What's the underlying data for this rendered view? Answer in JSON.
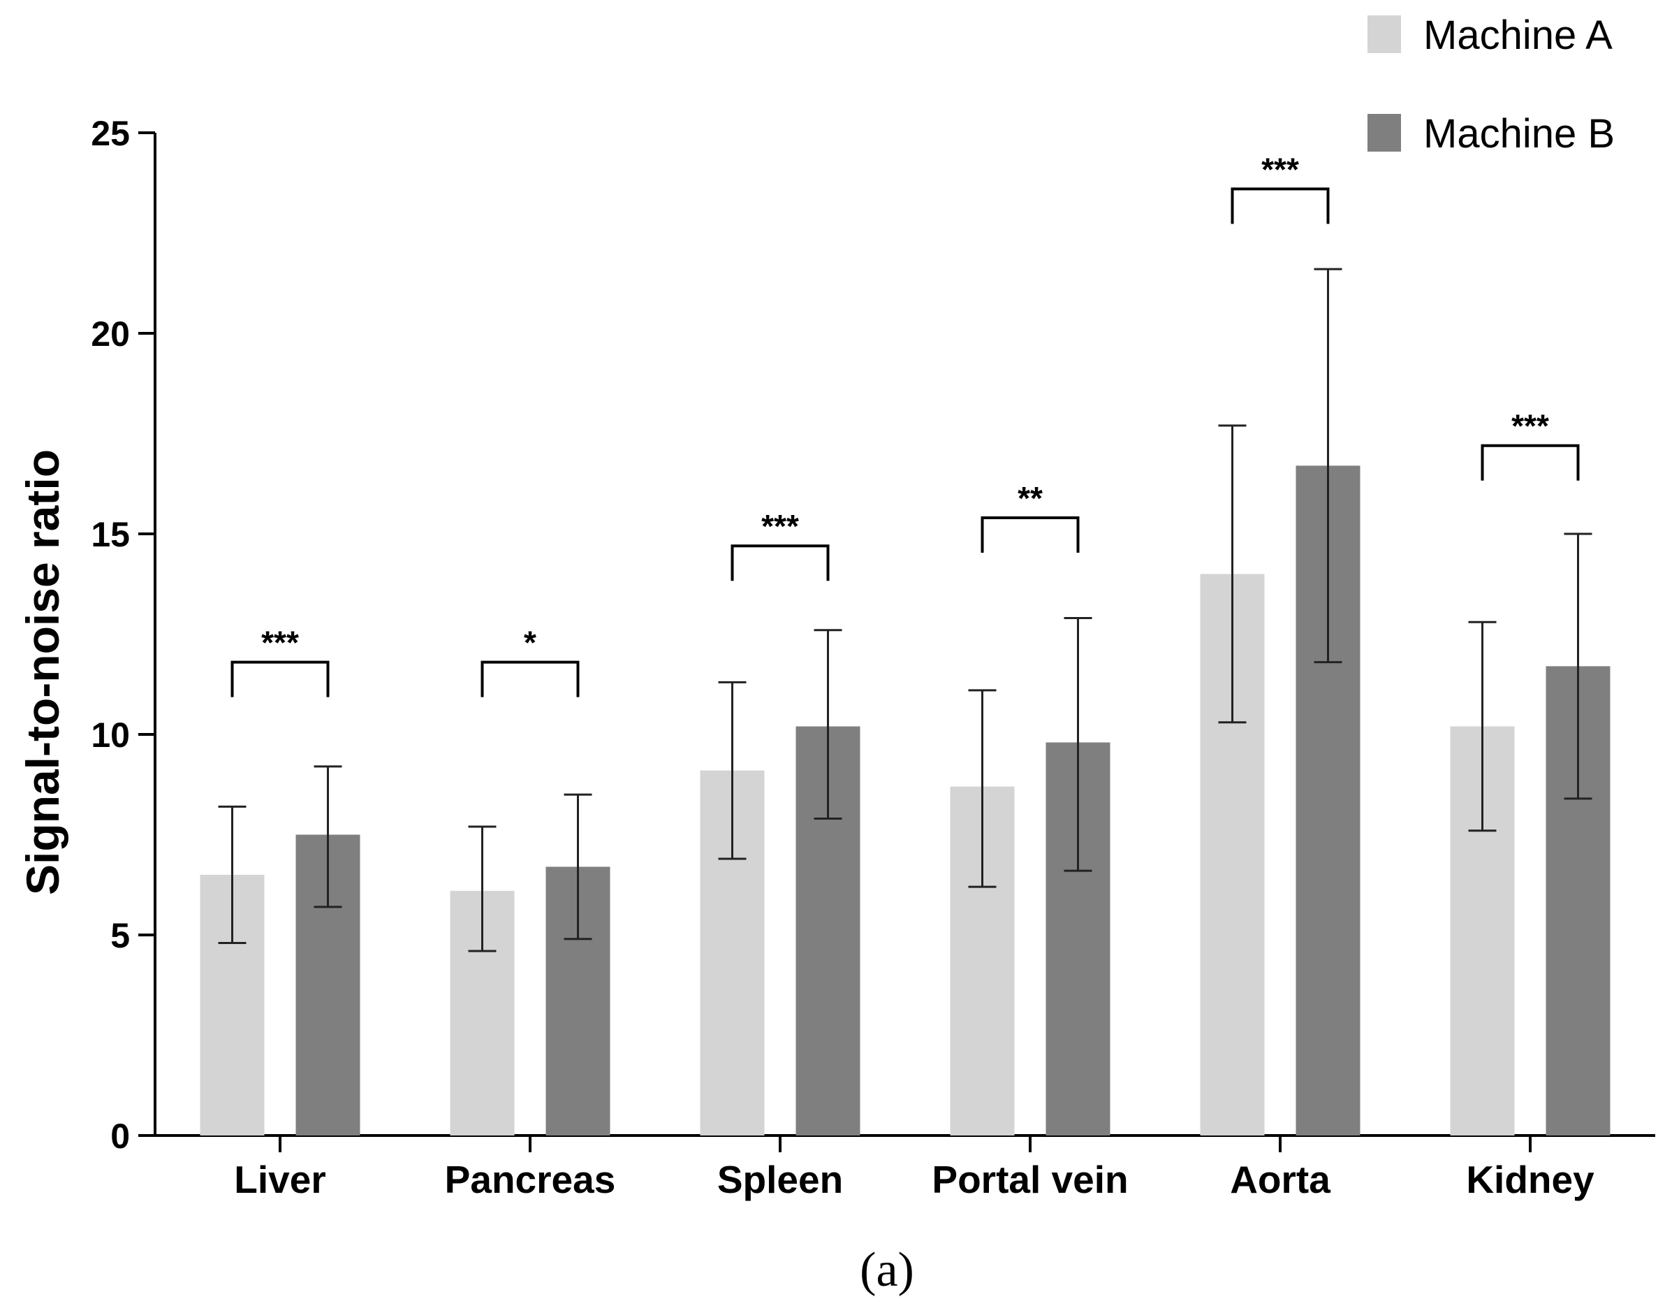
{
  "chart_data": {
    "type": "bar",
    "title": "",
    "xlabel": "",
    "ylabel": "Signal-to-noise ratio",
    "ylim": [
      0,
      25
    ],
    "yticks": [
      0,
      5,
      10,
      15,
      20,
      25
    ],
    "categories": [
      "Liver",
      "Pancreas",
      "Spleen",
      "Portal vein",
      "Aorta",
      "Kidney"
    ],
    "series": [
      {
        "name": "Machine A",
        "color": "#d4d4d4",
        "values": [
          6.5,
          6.1,
          9.1,
          8.7,
          14.0,
          10.2
        ],
        "err_low": [
          4.8,
          4.6,
          6.9,
          6.2,
          10.3,
          7.6
        ],
        "err_high": [
          8.2,
          7.7,
          11.3,
          11.1,
          17.7,
          12.8
        ]
      },
      {
        "name": "Machine B",
        "color": "#7f7f7f",
        "values": [
          7.5,
          6.7,
          10.2,
          9.8,
          16.7,
          11.7
        ],
        "err_low": [
          5.7,
          4.9,
          7.9,
          6.6,
          11.8,
          8.4
        ],
        "err_high": [
          9.2,
          8.5,
          12.6,
          12.9,
          21.6,
          15.0
        ]
      }
    ],
    "significance": [
      {
        "category": "Liver",
        "label": "***",
        "level": 11.8
      },
      {
        "category": "Pancreas",
        "label": "*",
        "level": 11.8
      },
      {
        "category": "Spleen",
        "label": "***",
        "level": 14.7
      },
      {
        "category": "Portal vein",
        "label": "**",
        "level": 15.4
      },
      {
        "category": "Aorta",
        "label": "***",
        "level": 23.6
      },
      {
        "category": "Kidney",
        "label": "***",
        "level": 17.2
      }
    ],
    "legend_position": "top-right"
  },
  "caption": "(a)"
}
